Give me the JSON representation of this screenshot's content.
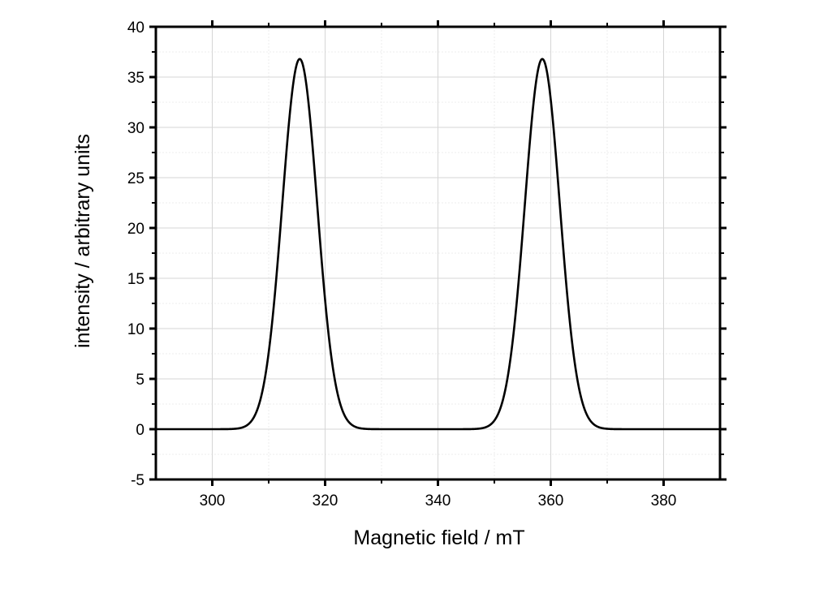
{
  "chart_data": {
    "type": "line",
    "title": "",
    "xlabel": "Magnetic field / mT",
    "ylabel": "intensity / arbitrary units",
    "xlim": [
      290,
      390
    ],
    "ylim": [
      -5,
      40
    ],
    "xticks": [
      300,
      320,
      340,
      360,
      380
    ],
    "yticks": [
      -5,
      0,
      5,
      10,
      15,
      20,
      25,
      30,
      35,
      40
    ],
    "grid": true,
    "legend": "none",
    "series": [
      {
        "color": "#000000",
        "peaks": [
          {
            "center": 315.5,
            "height": 36.8,
            "sigma": 3.1
          },
          {
            "center": 358.5,
            "height": 36.8,
            "sigma": 3.1
          }
        ]
      }
    ]
  }
}
